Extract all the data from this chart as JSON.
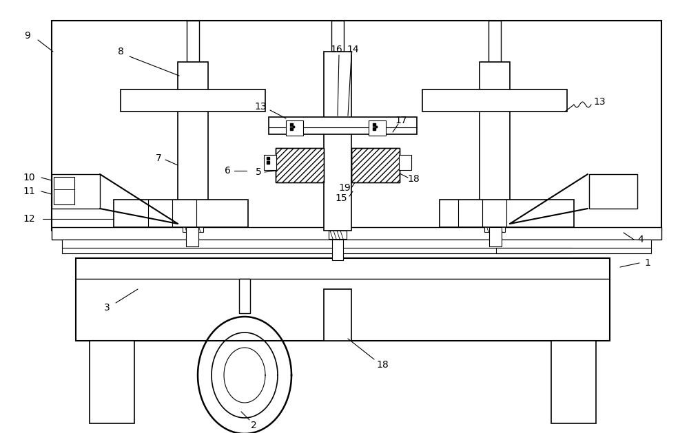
{
  "bg_color": "#ffffff",
  "lc": "#000000",
  "fig_w": 10.0,
  "fig_h": 6.29,
  "dpi": 100
}
